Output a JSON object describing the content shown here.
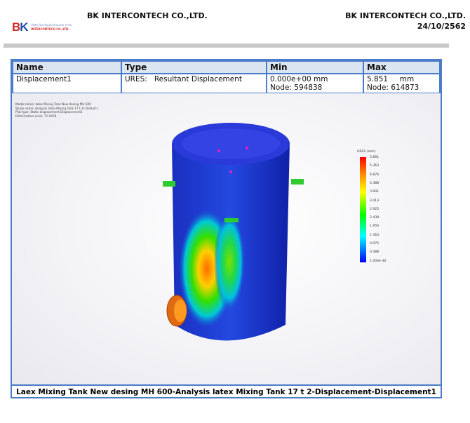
{
  "header": {
    "logo_text": "BK",
    "logo_subtext_th": "บริษัท บีเค อินเตอร์คอนเทค จำกัด",
    "logo_subtext_en": "INTERCONTECH CO.,LTD.",
    "company_left": "BK INTERCONTECH CO.,LTD.",
    "company_right": "BK INTERCONTECH CO.,LTD.",
    "date": "24/10/2562"
  },
  "table": {
    "headers": [
      "Name",
      "Type",
      "Min",
      "Max"
    ],
    "row": {
      "name": "Displacement1",
      "type": "URES:   Resultant Displacement",
      "min_value": "0.000e+00 mm",
      "min_node": "Node: 594838",
      "max_value": "5.851     mm",
      "max_node": "Node: 614873"
    }
  },
  "plot_info": [
    "Model name: latex Mixing Tank New desing MH 600",
    "Study name: Analysis latex Mixing Tank 17 t 2(-Default-)",
    "Plot type: Static displacement Displacement1",
    "Deformation scale: 71.0478"
  ],
  "legend": {
    "title": "URES (mm)",
    "ticks": [
      "5.851",
      "5.363",
      "4.876",
      "4.388",
      "3.901",
      "3.413",
      "2.925",
      "2.438",
      "1.950",
      "1.463",
      "0.975",
      "0.488",
      "1.000e-30"
    ],
    "colors": [
      "#ff0000",
      "#ff8000",
      "#ffff00",
      "#00ff00",
      "#00ffff",
      "#0000ff"
    ]
  },
  "caption": "Laex  Mixing Tank  New desing MH 600-Analysis  latex Mixing Tank 17 t 2-Displacement-Displacement1"
}
